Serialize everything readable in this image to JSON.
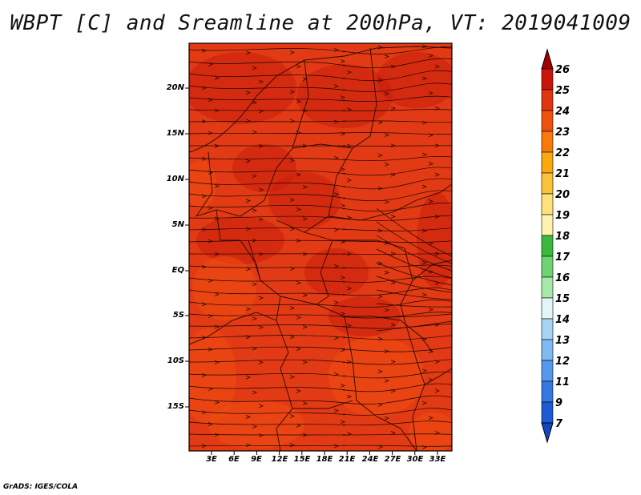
{
  "title": "WBPT [C] and Sreamline at 200hPa, VT: 2019041009",
  "credit": "GrADS: IGES/COLA",
  "map": {
    "lat_labels": [
      "20N",
      "15N",
      "10N",
      "5N",
      "EQ",
      "5S",
      "10S",
      "15S"
    ],
    "lon_labels": [
      "3E",
      "6E",
      "9E",
      "12E",
      "15E",
      "18E",
      "21E",
      "24E",
      "27E",
      "30E",
      "33E"
    ],
    "field_colors": {
      "main": "#e23a14",
      "dark": "#c81e0c",
      "light": "#ee4d10"
    }
  },
  "colorbar": {
    "labels": [
      "26",
      "25",
      "24",
      "23",
      "22",
      "21",
      "20",
      "19",
      "18",
      "17",
      "16",
      "15",
      "14",
      "13",
      "12",
      "11",
      "9",
      "7"
    ],
    "colors": [
      "#a50000",
      "#c8160a",
      "#e0350e",
      "#f0500e",
      "#f87a0a",
      "#faa80f",
      "#fbc23c",
      "#fde17b",
      "#fdf2b0",
      "#3cb83c",
      "#6fd46f",
      "#a8e8a8",
      "#e4f5f8",
      "#a8d4f4",
      "#7fbaf0",
      "#5598ec",
      "#3676e0",
      "#1e5ad2",
      "#1446c0"
    ]
  }
}
